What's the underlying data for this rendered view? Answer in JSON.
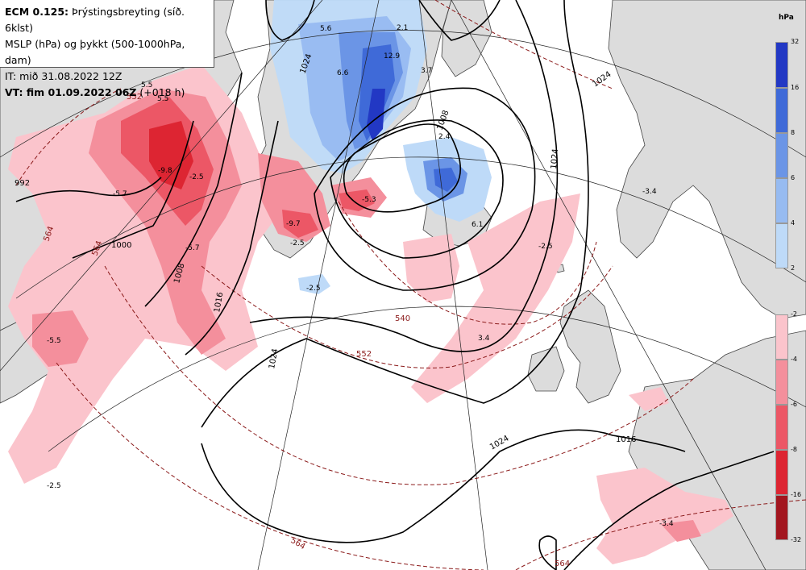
{
  "header": {
    "model": "ECM 0.125:",
    "title": "Þrýstingsbreyting (síð. 6klst)",
    "line2": "MSLP (hPa) og þykkt (500-1000hPa, dam)",
    "line3": "IT: mið 31.08.2022 12Z",
    "line4_prefix": "VT: fim 01.09.2022 06Z",
    "line4_suffix": "(+018 h)"
  },
  "colorbar": {
    "unit": "hPa",
    "rise_ticks": [
      "32",
      "16",
      "8",
      "6",
      "4",
      "2"
    ],
    "rise_colors": [
      "#2238c4",
      "#3f6ad8",
      "#6b95e6",
      "#97bbf1",
      "#bedaf8"
    ],
    "fall_ticks": [
      "-2",
      "-4",
      "-6",
      "-8",
      "-16",
      "-32"
    ],
    "fall_colors": [
      "#fbc4cc",
      "#f48f9c",
      "#ec5766",
      "#dd2532",
      "#a3161f"
    ]
  },
  "map": {
    "isobar_labels": [
      "992",
      "1000",
      "1008",
      "1016",
      "1024",
      "1024",
      "1016",
      "1024",
      "1008",
      "1024",
      "1024"
    ],
    "thickness_labels": [
      "540",
      "552",
      "552",
      "564",
      "564",
      "564",
      "564"
    ],
    "tendency_labels": [
      "5.5",
      "-5.7",
      "-9.8",
      "-5.7",
      "5.5",
      "-5.3",
      "-2.5",
      "-9.7",
      "-2.5",
      "-5.5",
      "-2.5",
      "5.6",
      "6.6",
      "2.1",
      "12.9",
      "3.7",
      "2.4",
      "6.1",
      "-2.5",
      "3.4",
      "-3.4",
      "-3.4",
      "-2.5"
    ]
  }
}
